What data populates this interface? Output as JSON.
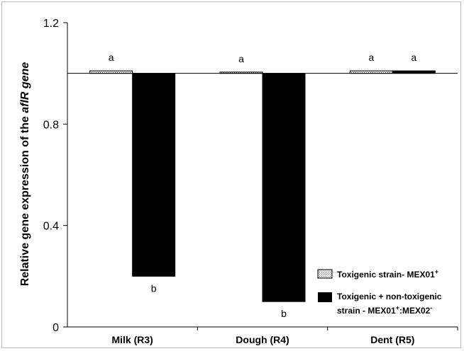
{
  "chart_data": {
    "type": "bar",
    "ylabel_prefix": "Relative gene expression of the ",
    "ylabel_gene": "aflR gene",
    "ylim": [
      0,
      1.2
    ],
    "yticks": [
      "0",
      "0.4",
      "0.8",
      "1.2"
    ],
    "ytick_values": [
      0,
      0.4,
      0.8,
      1.2
    ],
    "baseline": 1.0,
    "categories": [
      "Milk (R3)",
      "Dough (R4)",
      "Dent (R5)"
    ],
    "series": [
      {
        "name": "Toxigenic strain- MEX01",
        "name_sup": "+",
        "pattern": "dotted",
        "values": [
          1.01,
          1.005,
          1.01
        ],
        "labels": [
          "a",
          "a",
          "a"
        ]
      },
      {
        "name_line1": "Toxigenic + non-toxigenic",
        "name_line2_a": "strain - MEX01",
        "name_line2_sup1": "+",
        "name_line2_b": ":MEX02",
        "name_line2_sup2": "-",
        "color": "#000000",
        "values": [
          0.2,
          0.1,
          1.01
        ],
        "labels": [
          "b",
          "b",
          "a"
        ]
      }
    ]
  }
}
